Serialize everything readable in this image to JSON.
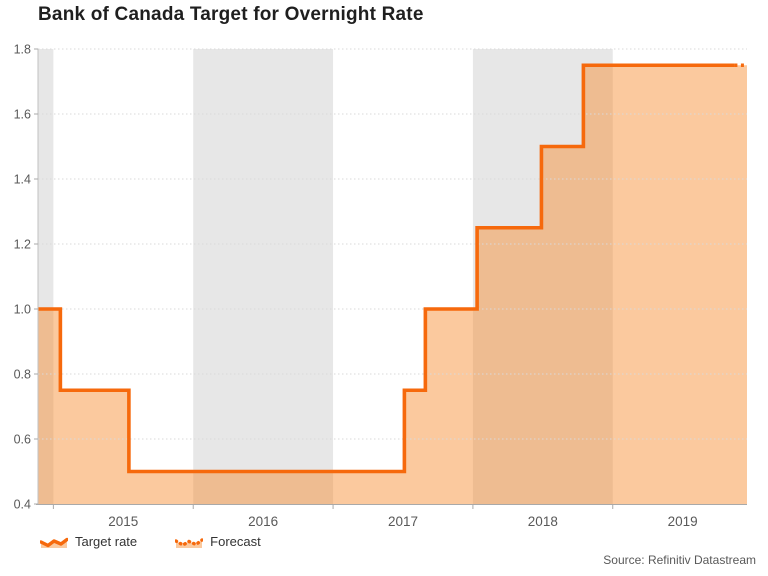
{
  "title": "Bank of Canada Target for Overnight Rate",
  "legend": {
    "target_label": "Target rate",
    "forecast_label": "Forecast"
  },
  "source": "Source: Refinitiv Datastream",
  "chart_data": {
    "type": "area",
    "subtype": "step-line-with-fill",
    "title": "Bank of Canada Target for Overnight Rate",
    "xlabel": "",
    "ylabel": "",
    "xlim": [
      2014.89,
      2019.96
    ],
    "ylim": [
      0.4,
      1.8
    ],
    "grid": "horizontal-dotted",
    "legend_position": "bottom-left",
    "y_tick_labels": [
      "0.4",
      "0.6",
      "0.8",
      "1.0",
      "1.2",
      "1.4",
      "1.6",
      "1.8"
    ],
    "y_tick_values": [
      0.4,
      0.6,
      0.8,
      1.0,
      1.2,
      1.4,
      1.6,
      1.8
    ],
    "x_tick_positions": [
      2015,
      2016,
      2017,
      2018,
      2019
    ],
    "x_labels": [
      {
        "text": "2015",
        "x": 2015.5
      },
      {
        "text": "2016",
        "x": 2016.5
      },
      {
        "text": "2017",
        "x": 2017.5
      },
      {
        "text": "2018",
        "x": 2018.5
      },
      {
        "text": "2019",
        "x": 2019.5
      }
    ],
    "year_shading_bands": [
      [
        2014.89,
        2015.0
      ],
      [
        2016.0,
        2017.0
      ],
      [
        2018.0,
        2019.0
      ]
    ],
    "series": [
      {
        "name": "Target rate",
        "style": "solid",
        "points": [
          [
            2014.89,
            1.0
          ],
          [
            2015.05,
            1.0
          ],
          [
            2015.05,
            0.75
          ],
          [
            2015.54,
            0.75
          ],
          [
            2015.54,
            0.5
          ],
          [
            2017.51,
            0.5
          ],
          [
            2017.51,
            0.75
          ],
          [
            2017.66,
            0.75
          ],
          [
            2017.66,
            1.0
          ],
          [
            2018.03,
            1.0
          ],
          [
            2018.03,
            1.25
          ],
          [
            2018.49,
            1.25
          ],
          [
            2018.49,
            1.5
          ],
          [
            2018.79,
            1.5
          ],
          [
            2018.79,
            1.75
          ],
          [
            2019.87,
            1.75
          ]
        ]
      },
      {
        "name": "Forecast",
        "style": "dotted",
        "points": [
          [
            2019.87,
            1.75
          ],
          [
            2019.96,
            1.75
          ]
        ]
      }
    ],
    "colors": {
      "line": "#f6690c",
      "area_fill": "rgba(246,135,39,0.45)",
      "year_band": "#e7e7e7",
      "gridline": "#d9d9d9",
      "axis": "#a9a9a9",
      "axis_left": "#c2c2c2",
      "tick_text": "#595959"
    }
  }
}
